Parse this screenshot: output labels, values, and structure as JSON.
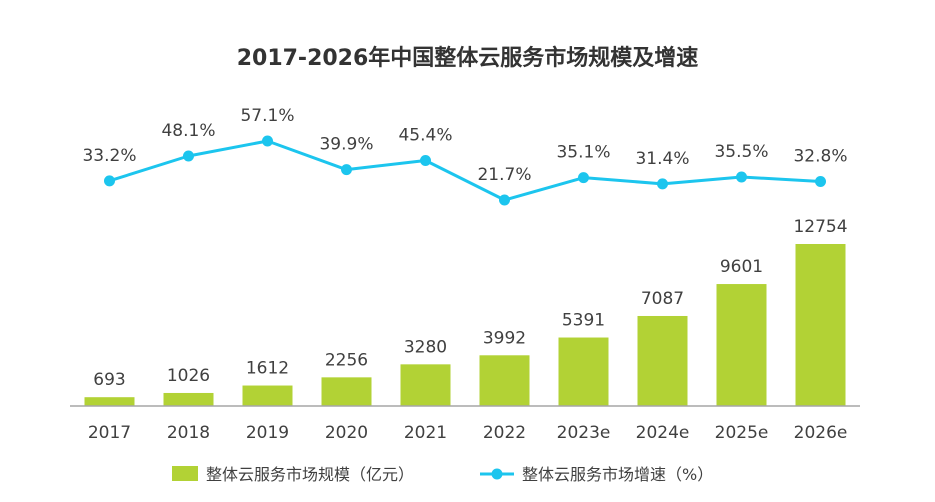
{
  "chart_data": {
    "type": "bar",
    "title": "2017-2026年中国整体云服务市场规模及增速",
    "categories": [
      "2017",
      "2018",
      "2019",
      "2020",
      "2021",
      "2022",
      "2023e",
      "2024e",
      "2025e",
      "2026e"
    ],
    "series": [
      {
        "name": "整体云服务市场规模（亿元）",
        "type": "bar",
        "values": [
          693,
          1026,
          1612,
          2256,
          3280,
          3992,
          5391,
          7087,
          9601,
          12754
        ],
        "labels": [
          "693",
          "1026",
          "1612",
          "2256",
          "3280",
          "3992",
          "5391",
          "7087",
          "9601",
          "12754"
        ],
        "color": "#b2d235"
      },
      {
        "name": "整体云服务市场增速（%）",
        "type": "line",
        "values": [
          33.2,
          48.1,
          57.1,
          39.9,
          45.4,
          21.7,
          35.1,
          31.4,
          35.5,
          32.8
        ],
        "labels": [
          "33.2%",
          "48.1%",
          "57.1%",
          "39.9%",
          "45.4%",
          "21.7%",
          "35.1%",
          "31.4%",
          "35.5%",
          "32.8%"
        ],
        "color": "#1cc5ee"
      }
    ],
    "xlabel": "",
    "ylabel": "",
    "legend_position": "bottom",
    "grid": false
  }
}
